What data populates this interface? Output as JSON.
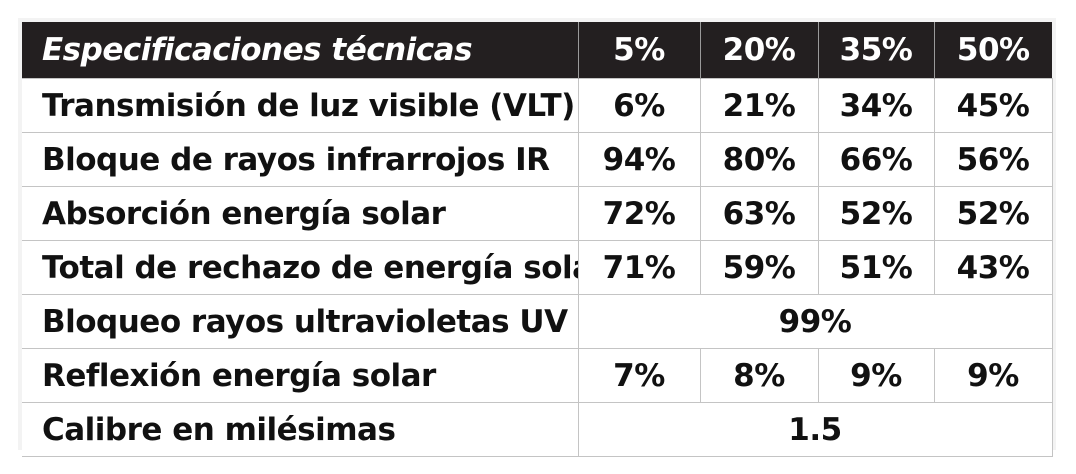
{
  "table": {
    "header": {
      "label": "Especificaciones técnicas",
      "columns": [
        "5%",
        "20%",
        "35%",
        "50%"
      ]
    },
    "rows": [
      {
        "label": "Transmisión de luz visible (VLT)",
        "values": [
          "6%",
          "21%",
          "34%",
          "45%"
        ]
      },
      {
        "label": "Bloque de rayos infrarrojos IR",
        "values": [
          "94%",
          "80%",
          "66%",
          "56%"
        ]
      },
      {
        "label": "Absorción energía solar",
        "values": [
          "72%",
          "63%",
          "52%",
          "52%"
        ]
      },
      {
        "label": "Total de rechazo de energía solar",
        "values": [
          "71%",
          "59%",
          "51%",
          "43%"
        ]
      },
      {
        "label": "Bloqueo rayos ultravioletas UV",
        "merged_value": "99%"
      },
      {
        "label": "Reflexión energía solar",
        "values": [
          "7%",
          "8%",
          "9%",
          "9%"
        ]
      },
      {
        "label": "Calibre en milésimas",
        "merged_value": "1.5"
      }
    ]
  },
  "colors": {
    "header_background": "#231f20",
    "header_text": "#ffffff",
    "body_text": "#111111",
    "cell_border": "#c4c4c4"
  }
}
